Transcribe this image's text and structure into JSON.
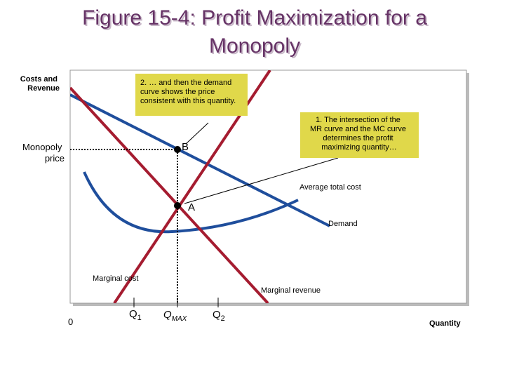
{
  "title": {
    "lines": [
      "Figure 15-4: Profit Maximization for a",
      "Monopoly"
    ]
  },
  "axis": {
    "y_label": [
      "Costs and",
      "Revenue"
    ],
    "x_label": "Quantity",
    "origin": "0"
  },
  "price_label": [
    "Monopoly",
    "price"
  ],
  "points": {
    "b": "B",
    "a": "A"
  },
  "curves": {
    "atc": "Average total cost",
    "demand": "Demand",
    "mc": "Marginal cost",
    "mr": "Marginal revenue"
  },
  "quantities": [
    {
      "main": "Q",
      "sub": "1"
    },
    {
      "main": "Q",
      "sub": "MAX"
    },
    {
      "main": "Q",
      "sub": "2"
    }
  ],
  "callouts": [
    {
      "lines": [
        "2. … and then the demand",
        "curve shows the price",
        "consistent with this quantity."
      ]
    },
    {
      "lines": [
        "1. The intersection of the",
        "MR curve and the MC curve",
        "determines the profit",
        "maximizing quantity…"
      ]
    }
  ]
}
